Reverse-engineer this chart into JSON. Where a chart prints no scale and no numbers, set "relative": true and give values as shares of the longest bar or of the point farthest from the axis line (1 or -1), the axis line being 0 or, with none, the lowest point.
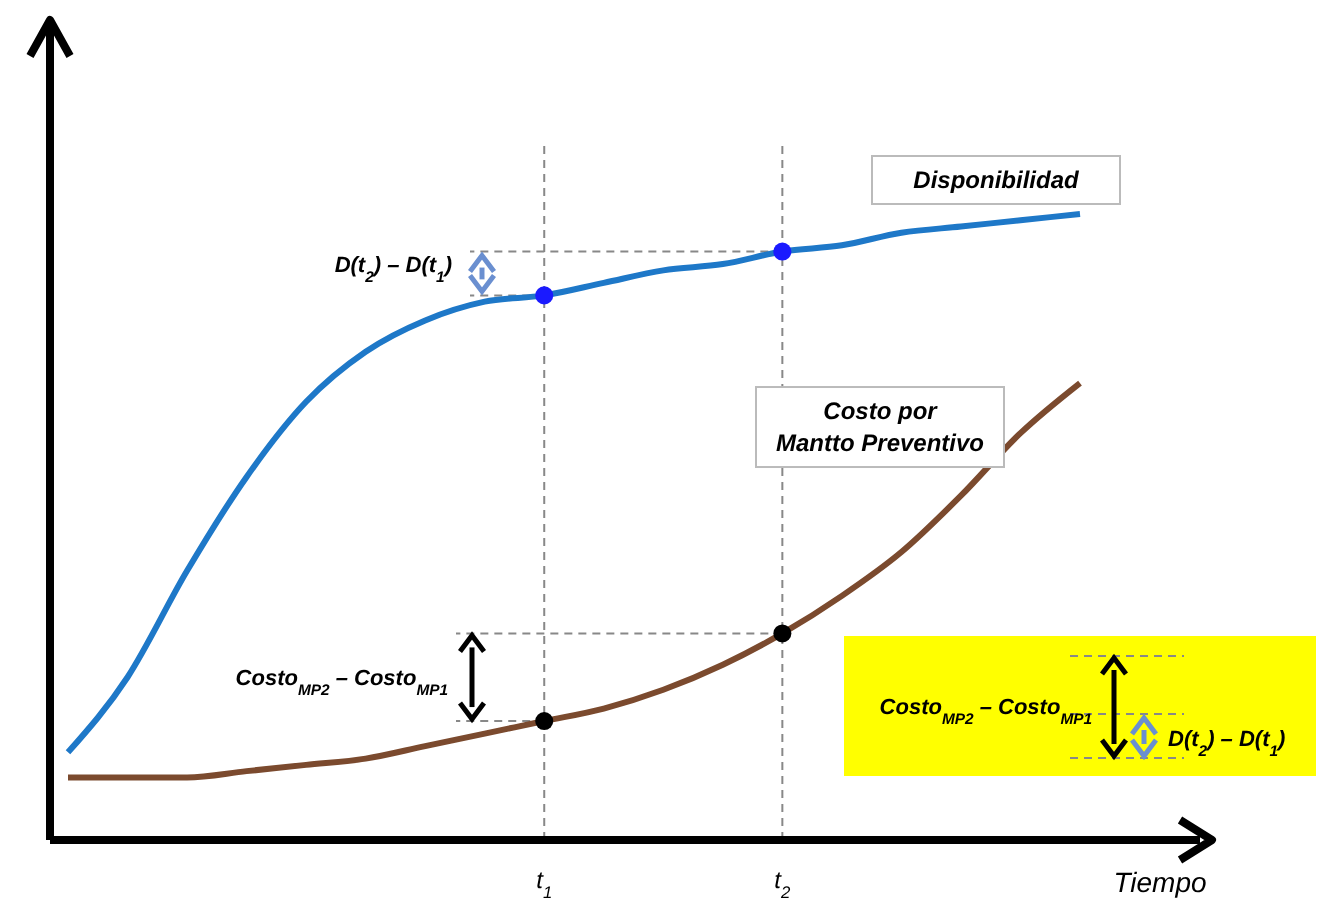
{
  "chart_data": {
    "type": "line",
    "relative": true,
    "xlabel": "Tiempo",
    "legend": false,
    "marker": "none",
    "line_style": "solid",
    "categories": [
      null,
      null,
      null,
      null,
      null,
      null,
      null,
      null,
      "t$_{1}$",
      null,
      null,
      null,
      "t$_{2}$",
      null,
      null,
      null,
      null,
      null
    ],
    "series": [
      {
        "name": "Disponibilidad",
        "color": "#1e78c8",
        "values": [
          0.14,
          0.26,
          0.43,
          0.58,
          0.7,
          0.78,
          0.83,
          0.86,
          0.87,
          0.89,
          0.91,
          0.92,
          0.94,
          0.95,
          0.97,
          0.98,
          0.99,
          1
        ]
      },
      {
        "name": "Costo por Mantto Preventivo",
        "color": "#7b4a2e",
        "values": [
          0.1,
          0.1,
          0.1,
          0.11,
          0.12,
          0.13,
          0.15,
          0.17,
          0.19,
          0.21,
          0.24,
          0.28,
          0.33,
          0.39,
          0.46,
          0.55,
          0.65,
          0.73
        ]
      },
      {
        "type": "scatter",
        "marker": "circle",
        "color": "#1a1aff",
        "x": [
          "t$_{1}$",
          "t$_{2}$"
        ],
        "values": [
          0.87,
          0.94
        ]
      },
      {
        "type": "scatter",
        "marker": "circle",
        "color": "#000000",
        "x": [
          "t$_{1}$",
          "t$_{2}$"
        ],
        "values": [
          0.19,
          0.33
        ]
      }
    ],
    "ref_lines": [
      {
        "axis": "x",
        "value": "t$_{1}$",
        "line_style": "dashed",
        "color": "#888888"
      },
      {
        "axis": "x",
        "value": "t$_{2}$",
        "line_style": "dashed",
        "color": "#888888"
      }
    ],
    "annotations": [
      "D(t$_{2}$) – D(t$_{1}$)",
      "Costo$_{MP2}$ – Costo$_{MP1}$",
      "Costo$_{MP2}$ – Costo$_{MP1}$",
      "D(t$_{2}$) – D(t$_{1}$)"
    ]
  }
}
